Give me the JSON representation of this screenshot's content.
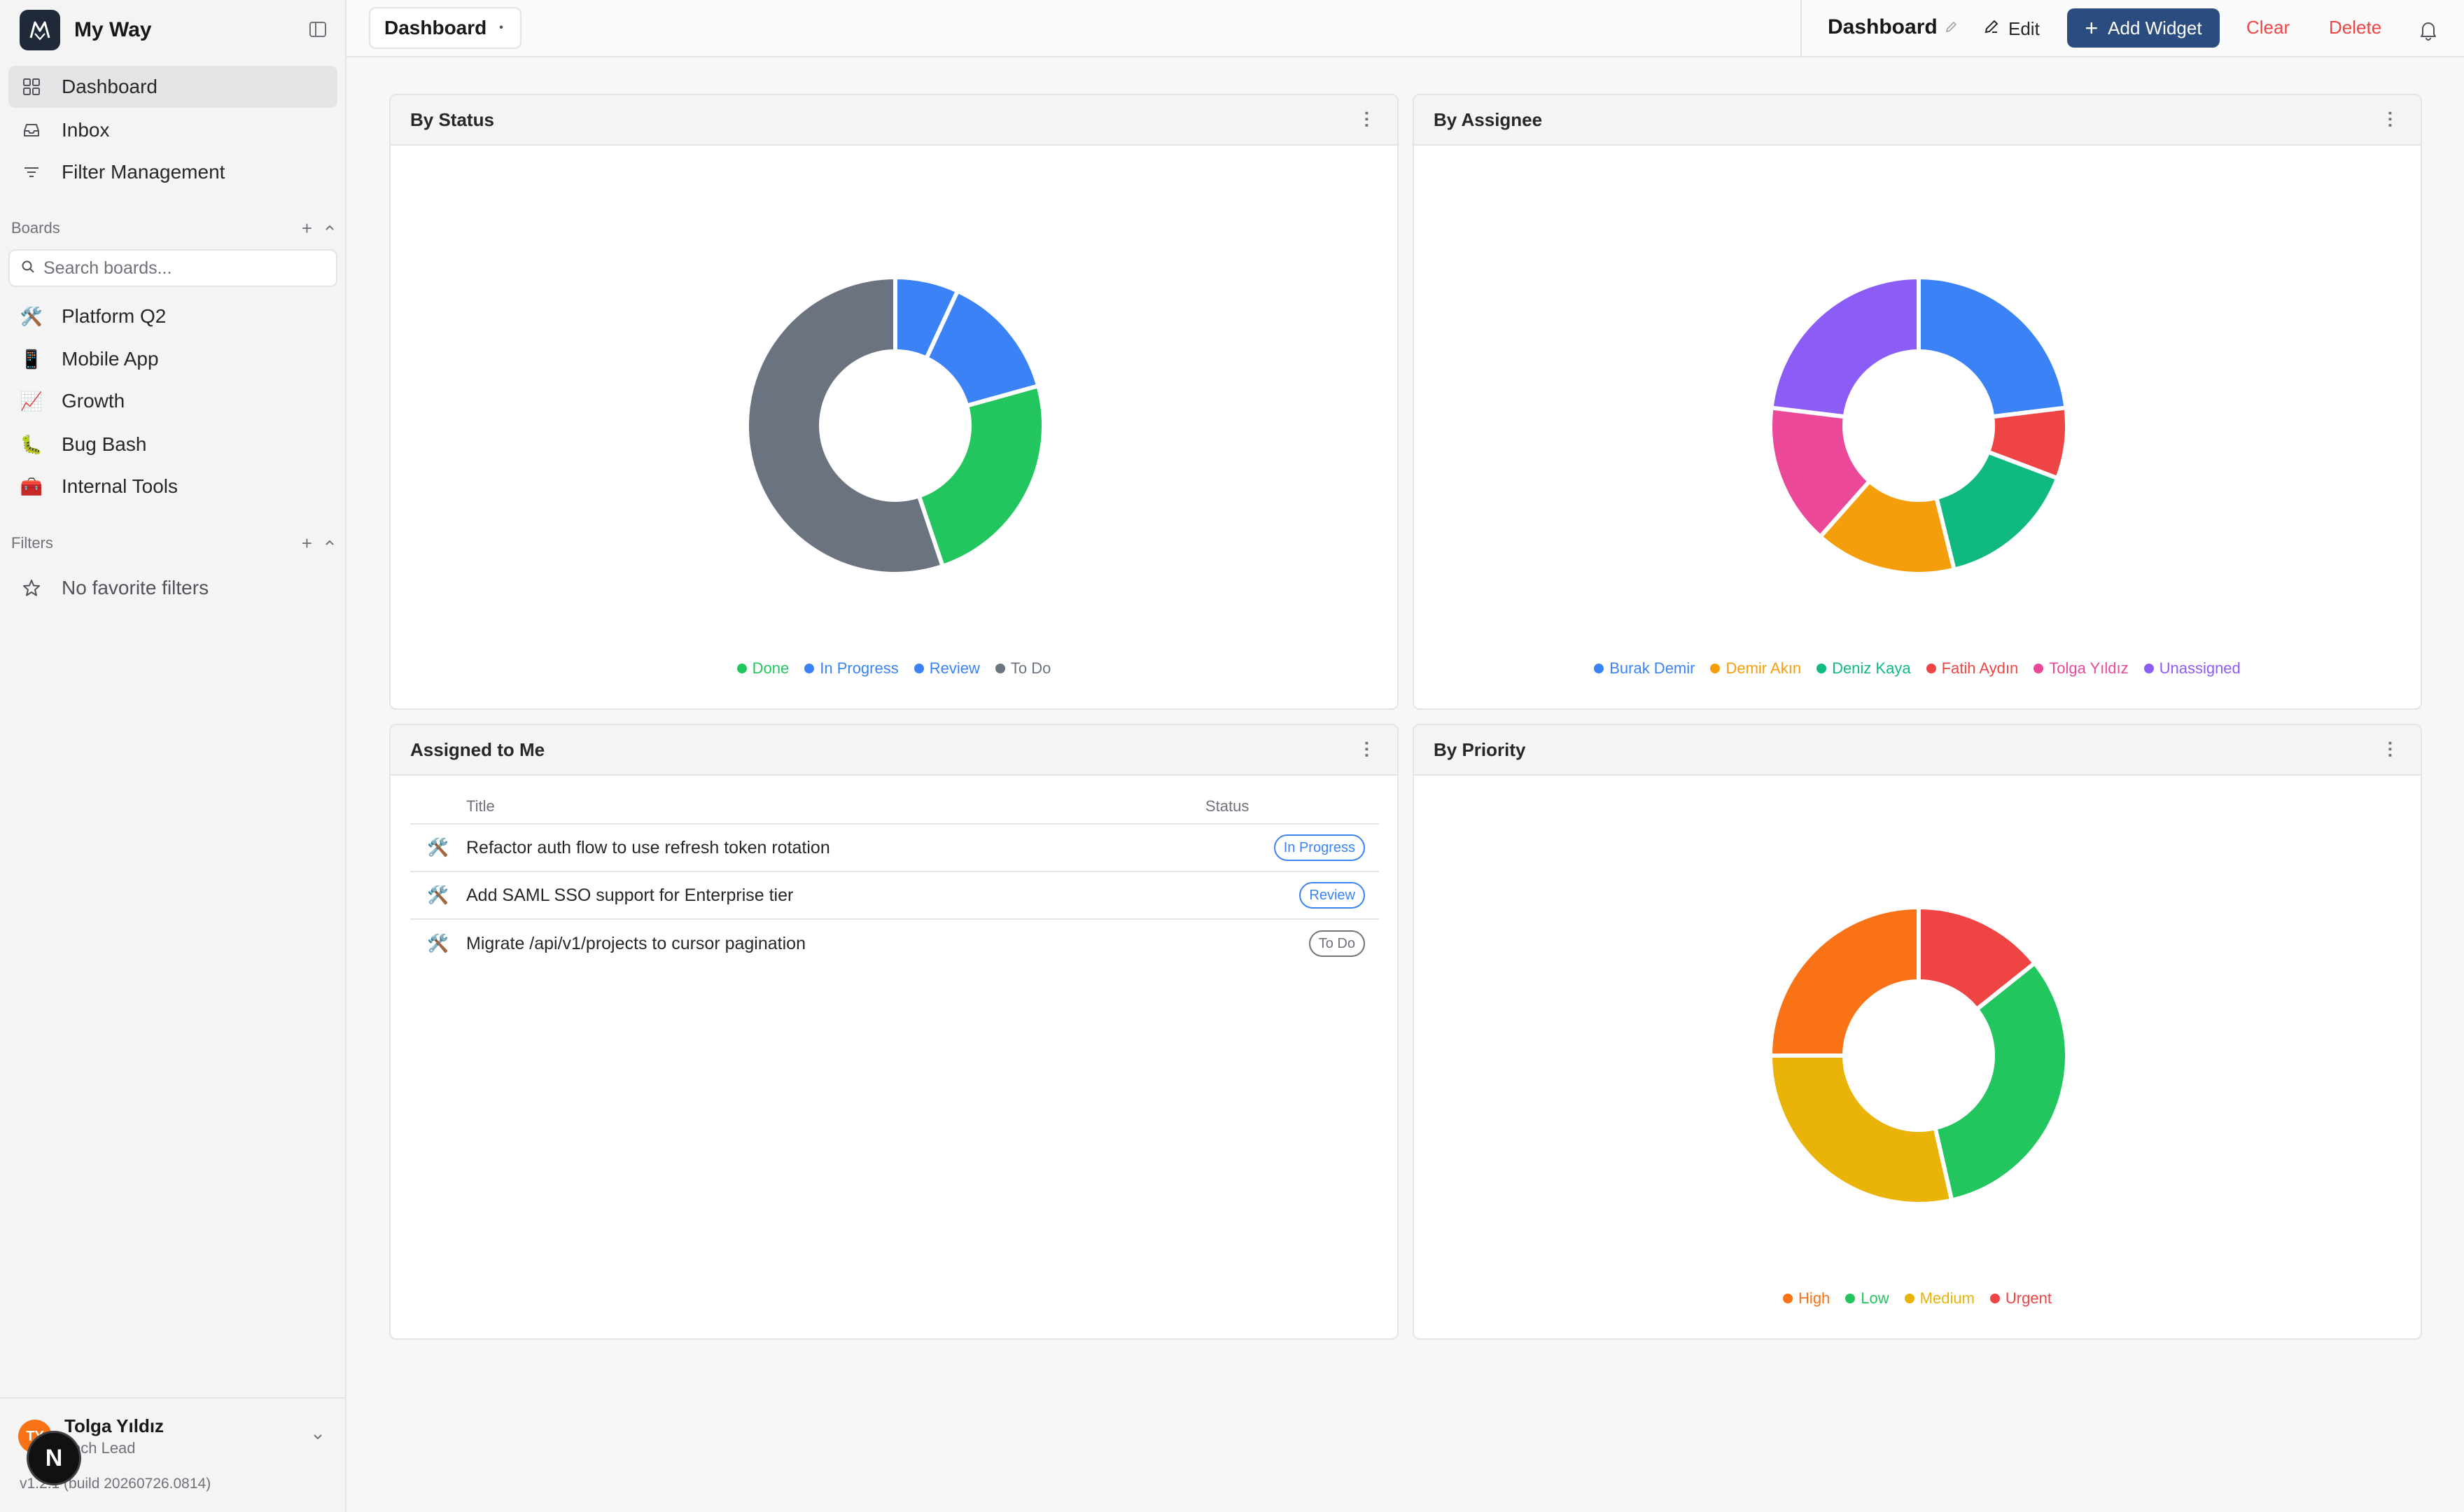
{
  "app": {
    "name": "My Way"
  },
  "sidebar": {
    "nav": [
      {
        "label": "Dashboard",
        "icon": "grid-icon",
        "active": true
      },
      {
        "label": "Inbox",
        "icon": "inbox-icon",
        "active": false
      },
      {
        "label": "Filter Management",
        "icon": "filter-lines-icon",
        "active": false
      }
    ],
    "boards_section": {
      "label": "Boards"
    },
    "search": {
      "placeholder": "Search boards..."
    },
    "boards": [
      {
        "label": "Platform Q2",
        "emoji": "🛠️"
      },
      {
        "label": "Mobile App",
        "emoji": "📱"
      },
      {
        "label": "Growth",
        "emoji": "📈"
      },
      {
        "label": "Bug Bash",
        "emoji": "🐛"
      },
      {
        "label": "Internal Tools",
        "emoji": "🧰"
      }
    ],
    "filters_section": {
      "label": "Filters"
    },
    "filters_empty": "No favorite filters",
    "user": {
      "initials": "TY",
      "name": "Tolga Yıldız",
      "role": "Tech Lead"
    },
    "version": "v1.2.1 (build 20260726.0814)",
    "n_badge": "N"
  },
  "topbar": {
    "dashboard_select": "Dashboard",
    "title": "Dashboard",
    "edit_label": "Edit",
    "add_widget_label": "Add Widget",
    "clear_label": "Clear",
    "delete_label": "Delete"
  },
  "widgets": {
    "by_status": {
      "title": "By Status"
    },
    "by_assignee": {
      "title": "By Assignee"
    },
    "assigned": {
      "title": "Assigned to Me",
      "columns": {
        "title": "Title",
        "status": "Status"
      },
      "rows": [
        {
          "title": "Refactor auth flow to use refresh token rotation",
          "status": "In Progress",
          "color": "#3b82f6",
          "icon": "🛠️"
        },
        {
          "title": "Add SAML SSO support for Enterprise tier",
          "status": "Review",
          "color": "#3b82f6",
          "icon": "🛠️"
        },
        {
          "title": "Migrate /api/v1/projects to cursor pagination",
          "status": "To Do",
          "color": "#71717a",
          "icon": "🛠️"
        }
      ]
    },
    "by_priority": {
      "title": "By Priority"
    }
  },
  "chart_data": [
    {
      "type": "pie",
      "title": "By Status",
      "donut": true,
      "legend_position": "bottom",
      "slices": [
        {
          "name": "Review",
          "value": 2,
          "color": "#3b82f6"
        },
        {
          "name": "In Progress",
          "value": 4,
          "color": "#3b82f6"
        },
        {
          "name": "Done",
          "value": 7,
          "color": "#22c55e"
        },
        {
          "name": "To Do",
          "value": 16,
          "color": "#6b7280"
        }
      ],
      "legend": [
        {
          "name": "Done",
          "color": "#22c55e"
        },
        {
          "name": "In Progress",
          "color": "#3b82f6"
        },
        {
          "name": "Review",
          "color": "#3b82f6"
        },
        {
          "name": "To Do",
          "color": "#6b7280"
        }
      ]
    },
    {
      "type": "pie",
      "title": "By Assignee",
      "donut": true,
      "legend_position": "bottom",
      "slices": [
        {
          "name": "Burak Demir",
          "value": 6,
          "color": "#3b82f6"
        },
        {
          "name": "Fatih Aydın",
          "value": 2,
          "color": "#ef4444"
        },
        {
          "name": "Deniz Kaya",
          "value": 4,
          "color": "#10b981"
        },
        {
          "name": "Demir Akın",
          "value": 4,
          "color": "#f59e0b"
        },
        {
          "name": "Tolga Yıldız",
          "value": 4,
          "color": "#ec4899"
        },
        {
          "name": "Unassigned",
          "value": 6,
          "color": "#8b5cf6"
        }
      ],
      "legend": [
        {
          "name": "Burak Demir",
          "color": "#3b82f6"
        },
        {
          "name": "Demir Akın",
          "color": "#f59e0b"
        },
        {
          "name": "Deniz Kaya",
          "color": "#10b981"
        },
        {
          "name": "Fatih Aydın",
          "color": "#ef4444"
        },
        {
          "name": "Tolga Yıldız",
          "color": "#ec4899"
        },
        {
          "name": "Unassigned",
          "color": "#8b5cf6"
        }
      ]
    },
    {
      "type": "pie",
      "title": "By Priority",
      "donut": true,
      "legend_position": "bottom",
      "slices": [
        {
          "name": "Urgent",
          "value": 4,
          "color": "#ef4444"
        },
        {
          "name": "Low",
          "value": 9,
          "color": "#22c55e"
        },
        {
          "name": "Medium",
          "value": 8,
          "color": "#eab308"
        },
        {
          "name": "High",
          "value": 7,
          "color": "#f97316"
        }
      ],
      "legend": [
        {
          "name": "High",
          "color": "#f97316"
        },
        {
          "name": "Low",
          "color": "#22c55e"
        },
        {
          "name": "Medium",
          "color": "#eab308"
        },
        {
          "name": "Urgent",
          "color": "#ef4444"
        }
      ]
    }
  ]
}
